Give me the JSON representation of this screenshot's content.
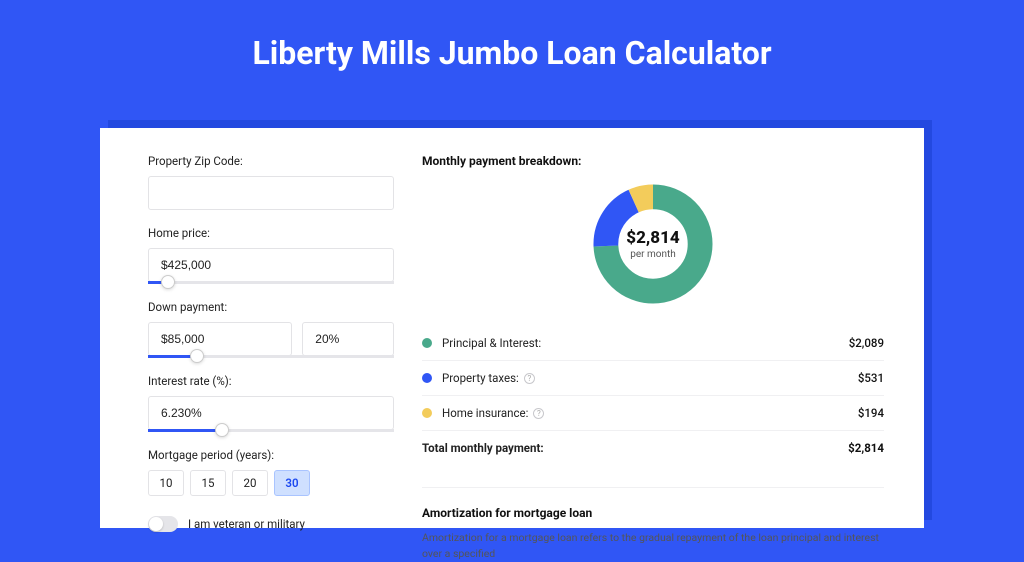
{
  "title": "Liberty Mills Jumbo Loan Calculator",
  "colors": {
    "page_bg": "#3056f5",
    "shadow": "#2349e0",
    "accent": "#3056f5",
    "slider_track": "#e5e5e9",
    "border": "#e3e3e6"
  },
  "form": {
    "zip": {
      "label": "Property Zip Code:",
      "value": ""
    },
    "price": {
      "label": "Home price:",
      "value": "$425,000",
      "slider_pct": 8
    },
    "down": {
      "label": "Down payment:",
      "value": "$85,000",
      "pct_value": "20%",
      "slider_pct": 20
    },
    "rate": {
      "label": "Interest rate (%):",
      "value": "6.230%",
      "slider_pct": 30
    },
    "period": {
      "label": "Mortgage period (years):",
      "options": [
        "10",
        "15",
        "20",
        "30"
      ],
      "selected": "30"
    },
    "veteran": {
      "label": "I am veteran or military",
      "checked": false
    }
  },
  "breakdown": {
    "title": "Monthly payment breakdown:",
    "donut": {
      "amount": "$2,814",
      "sub": "per month",
      "segments": [
        {
          "key": "pi",
          "pct": 74.2,
          "color": "#49a98b"
        },
        {
          "key": "tax",
          "pct": 18.9,
          "color": "#3056f5"
        },
        {
          "key": "ins",
          "pct": 6.9,
          "color": "#f3cc5b"
        }
      ],
      "stroke_width": 20
    },
    "rows": [
      {
        "label": "Principal & Interest:",
        "value": "$2,089",
        "color": "#49a98b",
        "info": false
      },
      {
        "label": "Property taxes:",
        "value": "$531",
        "color": "#3056f5",
        "info": true
      },
      {
        "label": "Home insurance:",
        "value": "$194",
        "color": "#f3cc5b",
        "info": true
      }
    ],
    "total": {
      "label": "Total monthly payment:",
      "value": "$2,814"
    }
  },
  "amortization": {
    "title": "Amortization for mortgage loan",
    "text": "Amortization for a mortgage loan refers to the gradual repayment of the loan principal and interest over a specified"
  }
}
